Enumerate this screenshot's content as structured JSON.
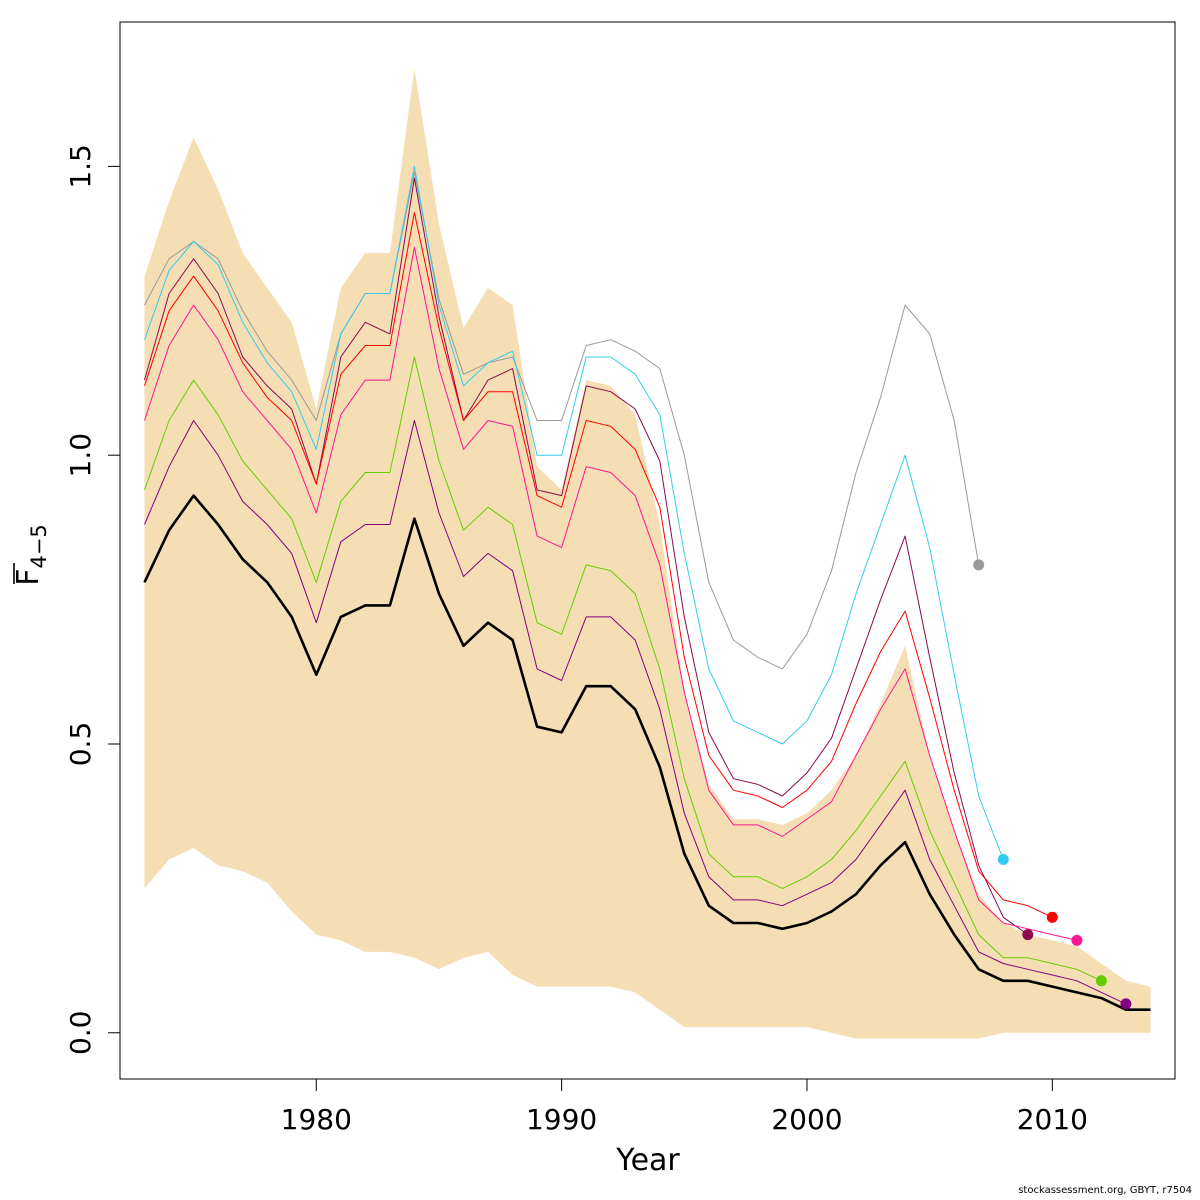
{
  "chart_data": {
    "type": "line",
    "xlabel": "Year",
    "ylabel_main": "F",
    "ylabel_sub": "4−5",
    "xlim": [
      1972,
      2015
    ],
    "ylim": [
      -0.08,
      1.75
    ],
    "xticks": [
      1980,
      1990,
      2000,
      2010
    ],
    "yticks": [
      0.0,
      0.5,
      1.0,
      1.5
    ],
    "ytick_labels": [
      "0.0",
      "0.5",
      "1.0",
      "1.5"
    ],
    "band": {
      "color": "#f5deb3",
      "x": [
        1973,
        1974,
        1975,
        1976,
        1977,
        1978,
        1979,
        1980,
        1981,
        1982,
        1983,
        1984,
        1985,
        1986,
        1987,
        1988,
        1989,
        1990,
        1991,
        1992,
        1993,
        1994,
        1995,
        1996,
        1997,
        1998,
        1999,
        2000,
        2001,
        2002,
        2003,
        2004,
        2005,
        2006,
        2007,
        2008,
        2009,
        2010,
        2011,
        2012,
        2013,
        2014
      ],
      "upper": [
        1.31,
        1.44,
        1.55,
        1.46,
        1.35,
        1.29,
        1.23,
        1.08,
        1.29,
        1.35,
        1.35,
        1.67,
        1.4,
        1.22,
        1.29,
        1.26,
        0.98,
        0.94,
        1.13,
        1.12,
        1.07,
        0.88,
        0.59,
        0.43,
        0.37,
        0.37,
        0.36,
        0.38,
        0.42,
        0.48,
        0.57,
        0.67,
        0.48,
        0.35,
        0.24,
        0.19,
        0.17,
        0.16,
        0.15,
        0.12,
        0.09,
        0.08
      ],
      "lower": [
        0.25,
        0.3,
        0.32,
        0.29,
        0.28,
        0.26,
        0.21,
        0.17,
        0.16,
        0.14,
        0.14,
        0.13,
        0.11,
        0.13,
        0.14,
        0.1,
        0.08,
        0.08,
        0.08,
        0.08,
        0.07,
        0.04,
        0.01,
        0.01,
        0.01,
        0.01,
        0.01,
        0.01,
        0.0,
        -0.01,
        -0.01,
        -0.01,
        -0.01,
        -0.01,
        -0.01,
        0.0,
        0.0,
        0.0,
        0.0,
        0.0,
        0.0,
        0.0
      ]
    },
    "series": [
      {
        "color": "#999999",
        "width": 1,
        "x": [
          1973,
          1974,
          1975,
          1976,
          1977,
          1978,
          1979,
          1980,
          1981,
          1982,
          1983,
          1984,
          1985,
          1986,
          1987,
          1988,
          1989,
          1990,
          1991,
          1992,
          1993,
          1994,
          1995,
          1996,
          1997,
          1998,
          1999,
          2000,
          2001,
          2002,
          2003,
          2004,
          2005,
          2006,
          2007
        ],
        "values": [
          1.26,
          1.34,
          1.37,
          1.34,
          1.25,
          1.18,
          1.13,
          1.06,
          1.21,
          1.28,
          1.28,
          1.49,
          1.27,
          1.14,
          1.16,
          1.17,
          1.06,
          1.06,
          1.19,
          1.2,
          1.18,
          1.15,
          1.0,
          0.78,
          0.68,
          0.65,
          0.63,
          0.69,
          0.8,
          0.97,
          1.1,
          1.26,
          1.21,
          1.06,
          0.81
        ],
        "end_point": true
      },
      {
        "color": "#33ccf0",
        "width": 1,
        "x": [
          1973,
          1974,
          1975,
          1976,
          1977,
          1978,
          1979,
          1980,
          1981,
          1982,
          1983,
          1984,
          1985,
          1986,
          1987,
          1988,
          1989,
          1990,
          1991,
          1992,
          1993,
          1994,
          1995,
          1996,
          1997,
          1998,
          1999,
          2000,
          2001,
          2002,
          2003,
          2004,
          2005,
          2006,
          2007,
          2008
        ],
        "values": [
          1.2,
          1.32,
          1.37,
          1.33,
          1.23,
          1.16,
          1.11,
          1.01,
          1.21,
          1.28,
          1.28,
          1.5,
          1.26,
          1.12,
          1.16,
          1.18,
          1.0,
          1.0,
          1.17,
          1.17,
          1.14,
          1.07,
          0.83,
          0.63,
          0.54,
          0.52,
          0.5,
          0.54,
          0.62,
          0.76,
          0.88,
          1.0,
          0.84,
          0.62,
          0.41,
          0.3
        ],
        "end_point": true
      },
      {
        "color": "#8b0a50",
        "width": 1,
        "x": [
          1973,
          1974,
          1975,
          1976,
          1977,
          1978,
          1979,
          1980,
          1981,
          1982,
          1983,
          1984,
          1985,
          1986,
          1987,
          1988,
          1989,
          1990,
          1991,
          1992,
          1993,
          1994,
          1995,
          1996,
          1997,
          1998,
          1999,
          2000,
          2001,
          2002,
          2003,
          2004,
          2005,
          2006,
          2007,
          2008,
          2009
        ],
        "values": [
          1.13,
          1.28,
          1.34,
          1.28,
          1.17,
          1.12,
          1.08,
          0.95,
          1.17,
          1.23,
          1.21,
          1.48,
          1.24,
          1.06,
          1.13,
          1.15,
          0.94,
          0.93,
          1.12,
          1.11,
          1.08,
          0.99,
          0.72,
          0.52,
          0.44,
          0.43,
          0.41,
          0.45,
          0.51,
          0.63,
          0.75,
          0.86,
          0.65,
          0.45,
          0.29,
          0.2,
          0.17
        ],
        "end_point": true
      },
      {
        "color": "#ff0000",
        "width": 1,
        "x": [
          1973,
          1974,
          1975,
          1976,
          1977,
          1978,
          1979,
          1980,
          1981,
          1982,
          1983,
          1984,
          1985,
          1986,
          1987,
          1988,
          1989,
          1990,
          1991,
          1992,
          1993,
          1994,
          1995,
          1996,
          1997,
          1998,
          1999,
          2000,
          2001,
          2002,
          2003,
          2004,
          2005,
          2006,
          2007,
          2008,
          2009,
          2010
        ],
        "values": [
          1.12,
          1.25,
          1.31,
          1.25,
          1.16,
          1.1,
          1.06,
          0.95,
          1.14,
          1.19,
          1.19,
          1.42,
          1.22,
          1.06,
          1.11,
          1.11,
          0.93,
          0.91,
          1.06,
          1.05,
          1.01,
          0.91,
          0.65,
          0.48,
          0.42,
          0.41,
          0.39,
          0.42,
          0.47,
          0.57,
          0.66,
          0.73,
          0.58,
          0.42,
          0.28,
          0.23,
          0.22,
          0.2
        ],
        "end_point": true
      },
      {
        "color": "#ff1493",
        "width": 1,
        "x": [
          1973,
          1974,
          1975,
          1976,
          1977,
          1978,
          1979,
          1980,
          1981,
          1982,
          1983,
          1984,
          1985,
          1986,
          1987,
          1988,
          1989,
          1990,
          1991,
          1992,
          1993,
          1994,
          1995,
          1996,
          1997,
          1998,
          1999,
          2000,
          2001,
          2002,
          2003,
          2004,
          2005,
          2006,
          2007,
          2008,
          2009,
          2010,
          2011
        ],
        "values": [
          1.06,
          1.19,
          1.26,
          1.2,
          1.11,
          1.06,
          1.01,
          0.9,
          1.07,
          1.13,
          1.13,
          1.36,
          1.15,
          1.01,
          1.06,
          1.05,
          0.86,
          0.84,
          0.98,
          0.97,
          0.93,
          0.81,
          0.59,
          0.42,
          0.36,
          0.36,
          0.34,
          0.37,
          0.4,
          0.48,
          0.56,
          0.63,
          0.48,
          0.35,
          0.23,
          0.19,
          0.18,
          0.17,
          0.16
        ],
        "end_point": true
      },
      {
        "color": "#66cc00",
        "width": 1,
        "x": [
          1973,
          1974,
          1975,
          1976,
          1977,
          1978,
          1979,
          1980,
          1981,
          1982,
          1983,
          1984,
          1985,
          1986,
          1987,
          1988,
          1989,
          1990,
          1991,
          1992,
          1993,
          1994,
          1995,
          1996,
          1997,
          1998,
          1999,
          2000,
          2001,
          2002,
          2003,
          2004,
          2005,
          2006,
          2007,
          2008,
          2009,
          2010,
          2011,
          2012
        ],
        "values": [
          0.94,
          1.06,
          1.13,
          1.07,
          0.99,
          0.94,
          0.89,
          0.78,
          0.92,
          0.97,
          0.97,
          1.17,
          0.99,
          0.87,
          0.91,
          0.88,
          0.71,
          0.69,
          0.81,
          0.8,
          0.76,
          0.63,
          0.44,
          0.31,
          0.27,
          0.27,
          0.25,
          0.27,
          0.3,
          0.35,
          0.41,
          0.47,
          0.35,
          0.26,
          0.17,
          0.13,
          0.13,
          0.12,
          0.11,
          0.09
        ],
        "end_point": true
      },
      {
        "color": "#800080",
        "width": 1,
        "x": [
          1973,
          1974,
          1975,
          1976,
          1977,
          1978,
          1979,
          1980,
          1981,
          1982,
          1983,
          1984,
          1985,
          1986,
          1987,
          1988,
          1989,
          1990,
          1991,
          1992,
          1993,
          1994,
          1995,
          1996,
          1997,
          1998,
          1999,
          2000,
          2001,
          2002,
          2003,
          2004,
          2005,
          2006,
          2007,
          2008,
          2009,
          2010,
          2011,
          2012,
          2013
        ],
        "values": [
          0.88,
          0.98,
          1.06,
          1.0,
          0.92,
          0.88,
          0.83,
          0.71,
          0.85,
          0.88,
          0.88,
          1.06,
          0.9,
          0.79,
          0.83,
          0.8,
          0.63,
          0.61,
          0.72,
          0.72,
          0.68,
          0.56,
          0.38,
          0.27,
          0.23,
          0.23,
          0.22,
          0.24,
          0.26,
          0.3,
          0.36,
          0.42,
          0.3,
          0.22,
          0.14,
          0.12,
          0.11,
          0.1,
          0.09,
          0.07,
          0.05
        ],
        "end_point": true
      },
      {
        "color": "#000000",
        "width": 2.6,
        "x": [
          1973,
          1974,
          1975,
          1976,
          1977,
          1978,
          1979,
          1980,
          1981,
          1982,
          1983,
          1984,
          1985,
          1986,
          1987,
          1988,
          1989,
          1990,
          1991,
          1992,
          1993,
          1994,
          1995,
          1996,
          1997,
          1998,
          1999,
          2000,
          2001,
          2002,
          2003,
          2004,
          2005,
          2006,
          2007,
          2008,
          2009,
          2010,
          2011,
          2012,
          2013,
          2014
        ],
        "values": [
          0.78,
          0.87,
          0.93,
          0.88,
          0.82,
          0.78,
          0.72,
          0.62,
          0.72,
          0.74,
          0.74,
          0.89,
          0.76,
          0.67,
          0.71,
          0.68,
          0.53,
          0.52,
          0.6,
          0.6,
          0.56,
          0.46,
          0.31,
          0.22,
          0.19,
          0.19,
          0.18,
          0.19,
          0.21,
          0.24,
          0.29,
          0.33,
          0.24,
          0.17,
          0.11,
          0.09,
          0.09,
          0.08,
          0.07,
          0.06,
          0.04,
          0.04
        ],
        "end_point": false
      }
    ]
  },
  "footer": "stockassessment.org, GBYT, r7504"
}
